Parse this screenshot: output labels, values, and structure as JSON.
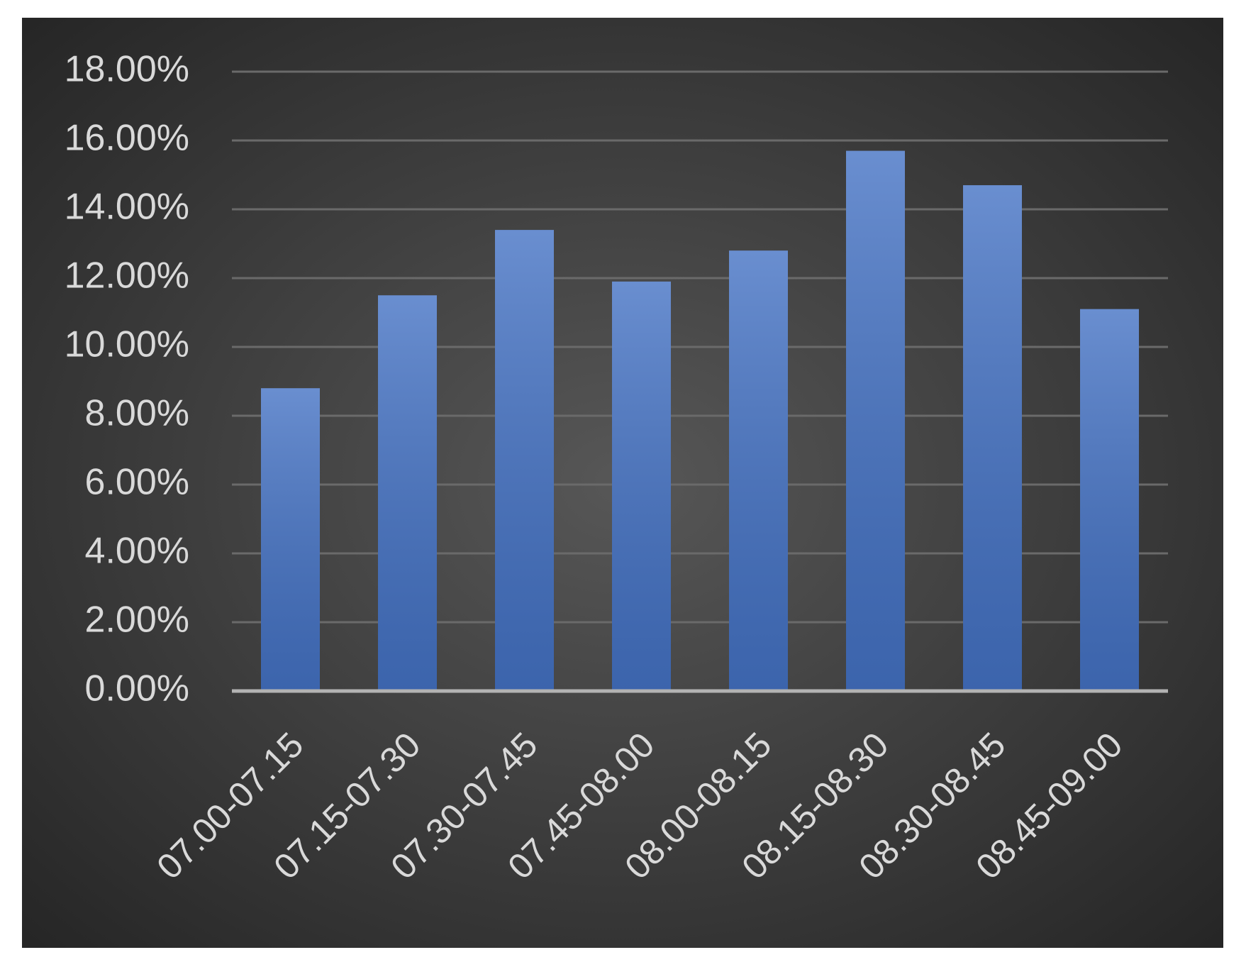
{
  "chart_data": {
    "type": "bar",
    "categories": [
      "07.00-07.15",
      "07.15-07.30",
      "07.30-07.45",
      "07.45-08.00",
      "08.00-08.15",
      "08.15-08.30",
      "08.30-08.45",
      "08.45-09.00"
    ],
    "values": [
      8.8,
      11.5,
      13.4,
      11.9,
      12.8,
      15.7,
      14.7,
      11.1
    ],
    "color": "#4472c4",
    "ylim": [
      0,
      18
    ],
    "yticks": [
      {
        "value": 0,
        "label": "0.00%"
      },
      {
        "value": 2,
        "label": "2.00%"
      },
      {
        "value": 4,
        "label": "4.00%"
      },
      {
        "value": 6,
        "label": "6.00%"
      },
      {
        "value": 8,
        "label": "8.00%"
      },
      {
        "value": 10,
        "label": "10.00%"
      },
      {
        "value": 12,
        "label": "12.00%"
      },
      {
        "value": 14,
        "label": "14.00%"
      },
      {
        "value": 16,
        "label": "16.00%"
      },
      {
        "value": 18,
        "label": "18.00%"
      }
    ],
    "grid": true
  }
}
